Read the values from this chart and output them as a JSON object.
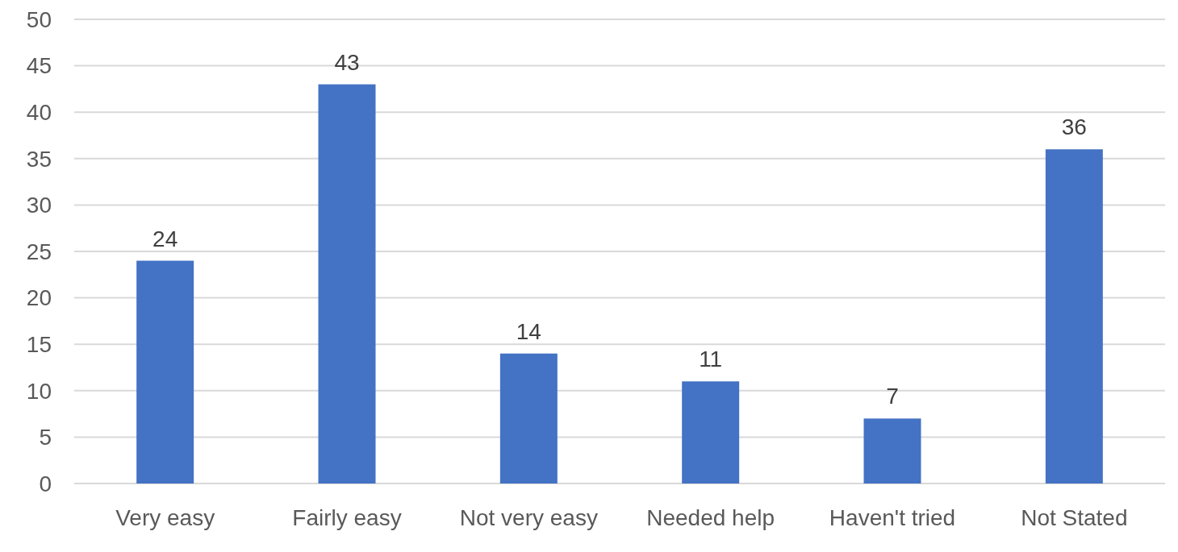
{
  "chart_data": {
    "type": "bar",
    "categories": [
      "Very easy",
      "Fairly easy",
      "Not very easy",
      "Needed help",
      "Haven't tried",
      "Not Stated"
    ],
    "values": [
      24,
      43,
      14,
      11,
      7,
      36
    ],
    "color": "#4472c4",
    "ylim": [
      0,
      50
    ],
    "yticks": [
      0,
      5,
      10,
      15,
      20,
      25,
      30,
      35,
      40,
      45,
      50
    ],
    "grid": "y",
    "data_labels": true
  }
}
